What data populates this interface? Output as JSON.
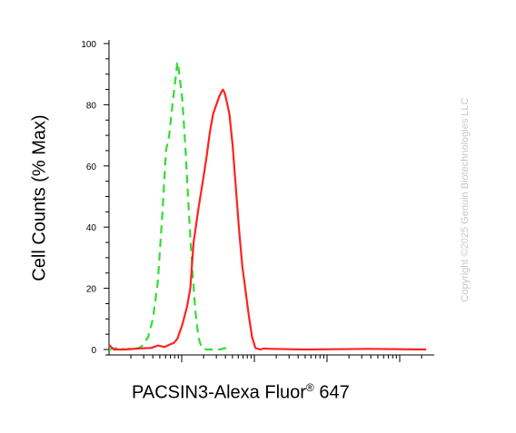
{
  "chart_data": {
    "type": "line",
    "ylabel": "Cell Counts (% Max)",
    "xlabel_main": "PACSIN3-Alexa Fluor",
    "xlabel_reg": "®",
    "xlabel_tail": " 647",
    "x_scale": "log",
    "ylim": [
      0,
      100
    ],
    "yticks": [
      "0",
      "20",
      "40",
      "60",
      "80",
      "100"
    ],
    "grid": false,
    "series": [
      {
        "color": "#33dd33",
        "style": "dashed",
        "points": [
          [
            0,
            0
          ],
          [
            0.06,
            0.6
          ],
          [
            0.1,
            0
          ],
          [
            0.12,
            0.2
          ],
          [
            0.16,
            0.6
          ],
          [
            0.18,
            0.4
          ],
          [
            0.2,
            1
          ],
          [
            0.24,
            4
          ],
          [
            0.27,
            10
          ],
          [
            0.3,
            22
          ],
          [
            0.33,
            46
          ],
          [
            0.35,
            65
          ],
          [
            0.37,
            70
          ],
          [
            0.39,
            80
          ],
          [
            0.41,
            89
          ],
          [
            0.42,
            94
          ],
          [
            0.43,
            91
          ],
          [
            0.45,
            82
          ],
          [
            0.47,
            66
          ],
          [
            0.49,
            46
          ],
          [
            0.51,
            28
          ],
          [
            0.53,
            13
          ],
          [
            0.55,
            4
          ],
          [
            0.57,
            0.5
          ],
          [
            0.6,
            0
          ],
          [
            0.68,
            0
          ],
          [
            0.72,
            0.5
          ]
        ]
      },
      {
        "color": "#ff2222",
        "style": "solid",
        "points": [
          [
            0,
            1.5
          ],
          [
            0.03,
            0
          ],
          [
            0.1,
            0
          ],
          [
            0.2,
            0.4
          ],
          [
            0.26,
            0.5
          ],
          [
            0.3,
            1.3
          ],
          [
            0.34,
            0.8
          ],
          [
            0.37,
            1.5
          ],
          [
            0.4,
            2.2
          ],
          [
            0.42,
            3.5
          ],
          [
            0.45,
            8
          ],
          [
            0.48,
            14
          ],
          [
            0.5,
            20
          ],
          [
            0.52,
            35
          ],
          [
            0.55,
            46
          ],
          [
            0.58,
            56
          ],
          [
            0.6,
            63
          ],
          [
            0.62,
            71
          ],
          [
            0.64,
            77
          ],
          [
            0.66,
            80
          ],
          [
            0.68,
            83
          ],
          [
            0.69,
            84
          ],
          [
            0.7,
            85
          ],
          [
            0.71,
            84
          ],
          [
            0.72,
            82
          ],
          [
            0.74,
            77
          ],
          [
            0.76,
            67
          ],
          [
            0.78,
            53
          ],
          [
            0.8,
            39
          ],
          [
            0.82,
            27
          ],
          [
            0.84,
            19
          ],
          [
            0.86,
            11
          ],
          [
            0.88,
            4
          ],
          [
            0.9,
            0.5
          ],
          [
            0.93,
            0
          ],
          [
            0.95,
            0.3
          ],
          [
            1.0,
            0.2
          ],
          [
            1.2,
            0
          ],
          [
            1.6,
            0.2
          ],
          [
            1.95,
            0
          ]
        ]
      }
    ]
  },
  "copyright": "Copyright ©2025 Genuin Biotechnologies LLC"
}
